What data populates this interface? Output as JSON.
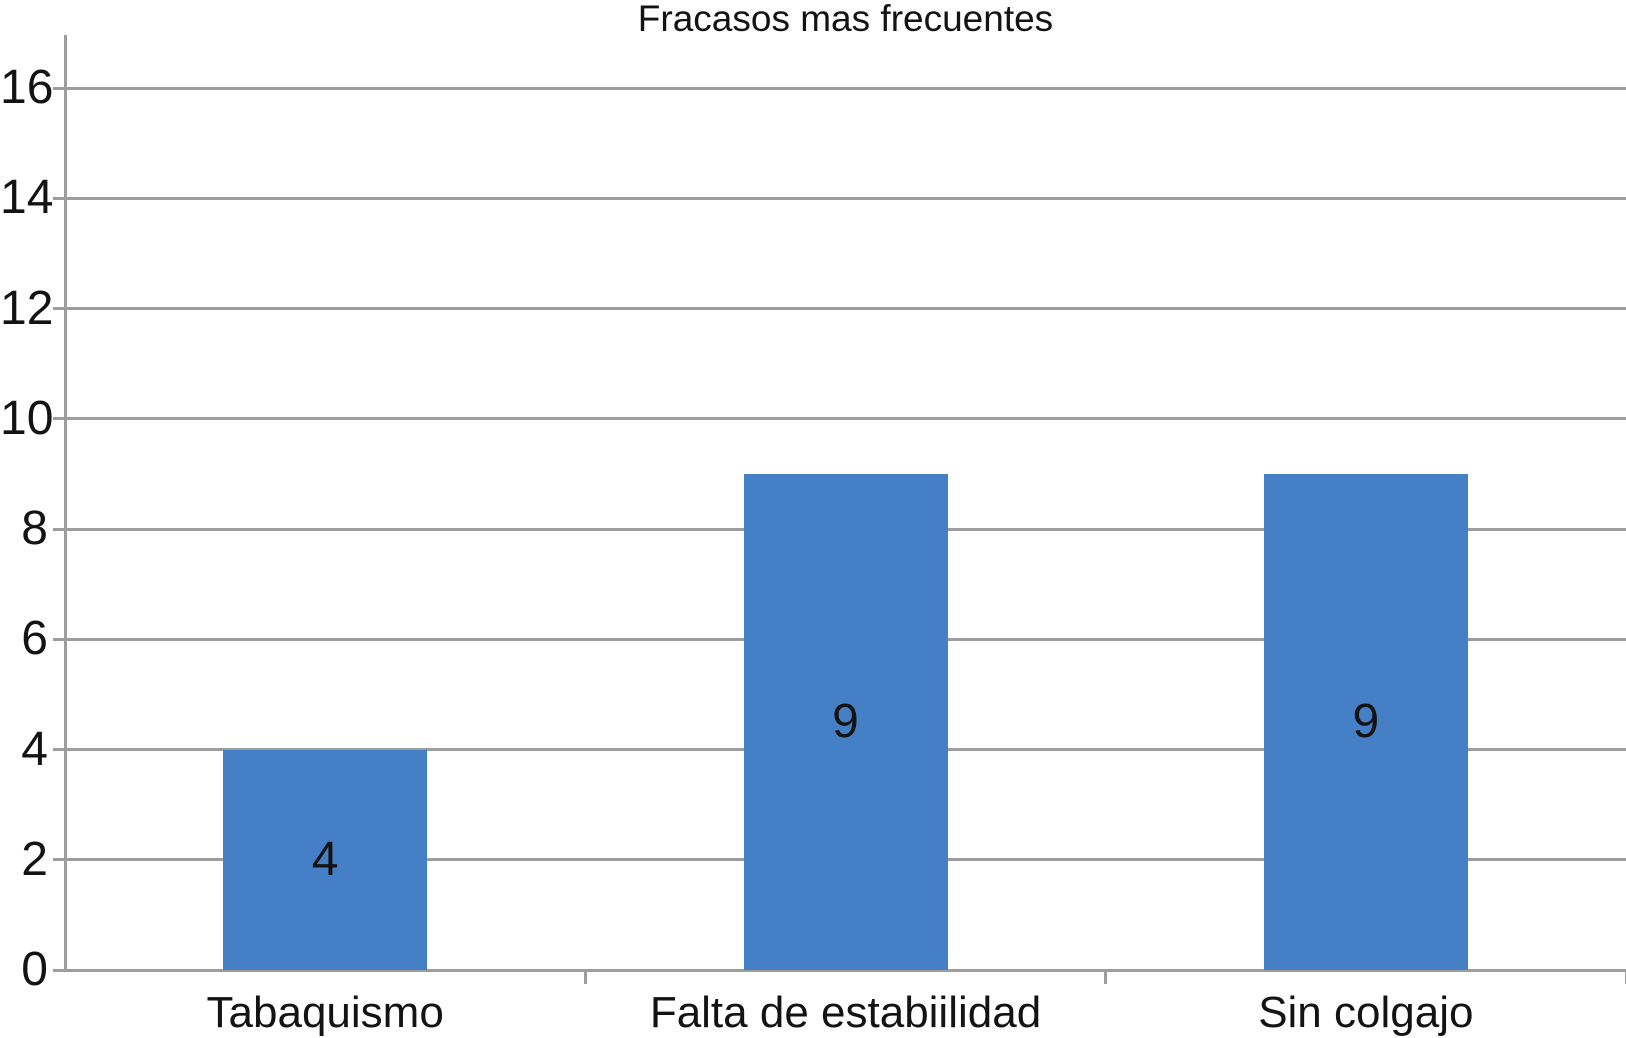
{
  "chart_data": {
    "type": "bar",
    "title": "Fracasos mas frecuentes",
    "categories": [
      "Tabaquismo",
      "Falta de estabiilidad",
      "Sin colgajo"
    ],
    "values": [
      4,
      9,
      9
    ],
    "data_labels": [
      "4",
      "9",
      "9"
    ],
    "data_label_position": "inside-center",
    "xlabel": "",
    "ylabel": "",
    "ylim": [
      0,
      16
    ],
    "yticks": [
      0,
      2,
      4,
      6,
      8,
      10,
      12,
      14,
      16
    ],
    "grid": true,
    "legend": "none",
    "bar_color": "#4580c7",
    "grid_color": "#9d9d9d",
    "axis_color": "#9d9d9d",
    "text_color": "#131313",
    "background_color": "#ffffff"
  }
}
